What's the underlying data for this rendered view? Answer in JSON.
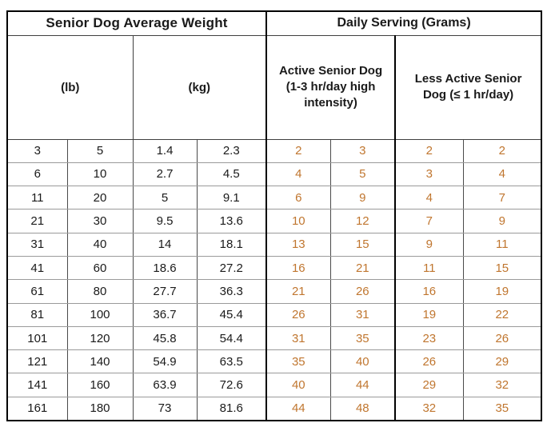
{
  "table": {
    "header": {
      "weight_title": "Senior Dog Average Weight",
      "serving_title": "Daily Serving (Grams)",
      "active_label": "Active Senior Dog (1-3 hr/day high intensity)",
      "less_active_label": "Less Active Senior Dog (≤ 1 hr/day)",
      "lb_label": "(lb)",
      "kg_label": "(kg)"
    },
    "columns": [
      "weight_lb_min",
      "weight_lb_max",
      "weight_kg_min",
      "weight_kg_max",
      "active_serving_min",
      "active_serving_max",
      "less_active_serving_min",
      "less_active_serving_max"
    ],
    "rows": [
      [
        "3",
        "5",
        "1.4",
        "2.3",
        "2",
        "3",
        "2",
        "2"
      ],
      [
        "6",
        "10",
        "2.7",
        "4.5",
        "4",
        "5",
        "3",
        "4"
      ],
      [
        "11",
        "20",
        "5",
        "9.1",
        "6",
        "9",
        "4",
        "7"
      ],
      [
        "21",
        "30",
        "9.5",
        "13.6",
        "10",
        "12",
        "7",
        "9"
      ],
      [
        "31",
        "40",
        "14",
        "18.1",
        "13",
        "15",
        "9",
        "11"
      ],
      [
        "41",
        "60",
        "18.6",
        "27.2",
        "16",
        "21",
        "11",
        "15"
      ],
      [
        "61",
        "80",
        "27.7",
        "36.3",
        "21",
        "26",
        "16",
        "19"
      ],
      [
        "81",
        "100",
        "36.7",
        "45.4",
        "26",
        "31",
        "19",
        "22"
      ],
      [
        "101",
        "120",
        "45.8",
        "54.4",
        "31",
        "35",
        "23",
        "26"
      ],
      [
        "121",
        "140",
        "54.9",
        "63.5",
        "35",
        "40",
        "26",
        "29"
      ],
      [
        "141",
        "160",
        "63.9",
        "72.6",
        "40",
        "44",
        "29",
        "32"
      ],
      [
        "161",
        "180",
        "73",
        "81.6",
        "44",
        "48",
        "32",
        "35"
      ]
    ],
    "colors": {
      "serving_text": "#c0762f",
      "weight_text": "#1a1a1a",
      "border_outer": "#000000"
    }
  }
}
